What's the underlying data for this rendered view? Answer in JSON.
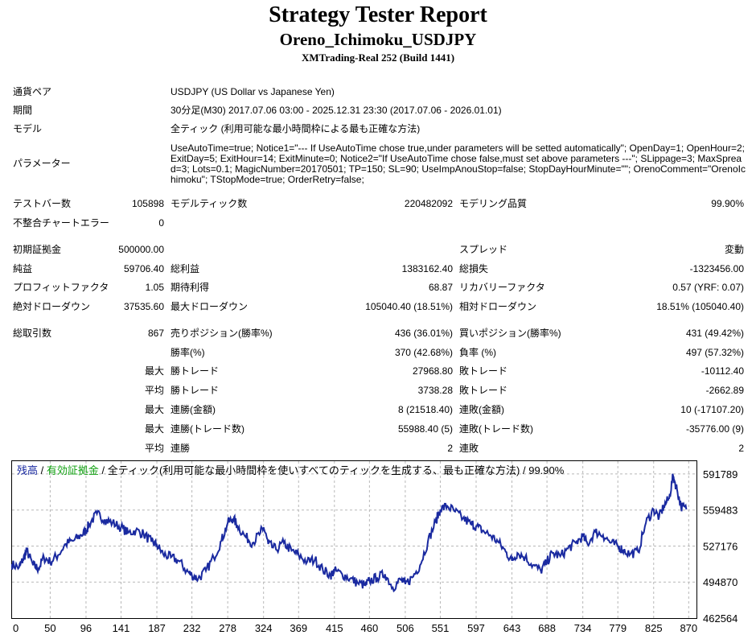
{
  "header": {
    "title": "Strategy Tester Report",
    "subtitle": "Oreno_Ichimoku_USDJPY",
    "server": "XMTrading-Real 252 (Build 1441)"
  },
  "info": {
    "symbol_label": "通貨ペア",
    "symbol_value": "USDJPY (US Dollar vs Japanese Yen)",
    "period_label": "期間",
    "period_value": "30分足(M30) 2017.07.06 03:00 - 2025.12.31 23:30 (2017.07.06 - 2026.01.01)",
    "model_label": "モデル",
    "model_value": "全ティック (利用可能な最小時間枠による最も正確な方法)",
    "params_label": "パラメーター",
    "params_value": "UseAutoTime=true; Notice1=\"--- If UseAutoTime chose true,under parameters will be setted automatically\"; OpenDay=1; OpenHour=2; ExitDay=5; ExitHour=14; ExitMinute=0; Notice2=\"If UseAutoTime chose false,must set above parameters ---\"; SLippage=3; MaxSpread=3; Lots=0.1; MagicNumber=20170501; TP=150; SL=90; UseImpAnouStop=false; StopDayHourMinute=\"\"; OrenoComment=\"OrenoIchimoku\"; TStopMode=true; OrderRetry=false;"
  },
  "stats": {
    "bars_label": "テストバー数",
    "bars_value": "105898",
    "ticks_label": "モデルティック数",
    "ticks_value": "220482092",
    "quality_label": "モデリング品質",
    "quality_value": "99.90%",
    "mismatch_label": "不整合チャートエラー",
    "mismatch_value": "0",
    "deposit_label": "初期証拠金",
    "deposit_value": "500000.00",
    "spread_label": "スプレッド",
    "spread_value": "変動",
    "net_label": "純益",
    "net_value": "59706.40",
    "gross_profit_label": "総利益",
    "gross_profit_value": "1383162.40",
    "gross_loss_label": "総損失",
    "gross_loss_value": "-1323456.00",
    "pf_label": "プロフィットファクタ",
    "pf_value": "1.05",
    "payoff_label": "期待利得",
    "payoff_value": "68.87",
    "recovery_label": "リカバリーファクタ",
    "recovery_value": "0.57 (YRF: 0.07)",
    "abs_dd_label": "絶対ドローダウン",
    "abs_dd_value": "37535.60",
    "max_dd_label": "最大ドローダウン",
    "max_dd_value": "105040.40 (18.51%)",
    "rel_dd_label": "相対ドローダウン",
    "rel_dd_value": "18.51% (105040.40)",
    "total_trades_label": "総取引数",
    "total_trades_value": "867",
    "short_label": "売りポジション(勝率%)",
    "short_value": "436 (36.01%)",
    "long_label": "買いポジション(勝率%)",
    "long_value": "431 (49.42%)",
    "win_rate_label": "勝率(%)",
    "win_rate_value": "370 (42.68%)",
    "loss_rate_label": "負率 (%)",
    "loss_rate_value": "497 (57.32%)",
    "largest_label": "最大",
    "largest_win_label": "勝トレード",
    "largest_win_value": "27968.80",
    "largest_loss_label": "敗トレード",
    "largest_loss_value": "-10112.40",
    "average_label": "平均",
    "avg_win_label": "勝トレード",
    "avg_win_value": "3738.28",
    "avg_loss_label": "敗トレード",
    "avg_loss_value": "-2662.89",
    "max_label1": "最大",
    "consec_wins_money_label": "連勝(金額)",
    "consec_wins_money_value": "8 (21518.40)",
    "consec_losses_money_label": "連敗(金額)",
    "consec_losses_money_value": "10 (-17107.20)",
    "max_label2": "最大",
    "consec_profit_label": "連勝(トレード数)",
    "consec_profit_value": "55988.40 (5)",
    "consec_loss_label": "連敗(トレード数)",
    "consec_loss_value": "-35776.00 (9)",
    "avg_label2": "平均",
    "avg_consec_wins_label": "連勝",
    "avg_consec_wins_value": "2",
    "avg_consec_losses_label": "連敗",
    "avg_consec_losses_value": "2"
  },
  "chart_legend": {
    "balance": "残高",
    "sep1": " / ",
    "equity": "有効証拠金",
    "sep2": " / ",
    "rest": "全ティック(利用可能な最小時間枠を使いすべてのティックを生成する、最も正確な方法) / 99.90%"
  },
  "colors": {
    "balance_line": "#1a2aa0",
    "equity_text": "#10a010",
    "grid": "#b8b8b8"
  },
  "chart_data": {
    "type": "line",
    "xlim": [
      0,
      880
    ],
    "ylim": [
      462564,
      604000
    ],
    "x_ticks": [
      "0",
      "50",
      "96",
      "141",
      "187",
      "232",
      "278",
      "324",
      "369",
      "415",
      "460",
      "506",
      "551",
      "597",
      "643",
      "688",
      "734",
      "779",
      "825",
      "870"
    ],
    "y_ticks": [
      591789,
      559483,
      527176,
      494870,
      462564
    ],
    "series": [
      {
        "color": "#1a2aa0",
        "x": [
          0,
          10,
          15,
          20,
          28,
          35,
          42,
          50,
          60,
          70,
          80,
          90,
          96,
          100,
          110,
          120,
          130,
          141,
          150,
          160,
          170,
          180,
          187,
          195,
          205,
          215,
          225,
          232,
          240,
          250,
          260,
          270,
          278,
          285,
          290,
          300,
          310,
          320,
          324,
          330,
          340,
          350,
          360,
          369,
          380,
          390,
          400,
          410,
          415,
          425,
          435,
          445,
          455,
          460,
          470,
          480,
          490,
          500,
          506,
          515,
          525,
          535,
          545,
          551,
          560,
          570,
          580,
          590,
          597,
          605,
          615,
          625,
          635,
          643,
          650,
          660,
          670,
          680,
          688,
          695,
          705,
          715,
          725,
          734,
          740,
          750,
          760,
          770,
          779,
          785,
          795,
          805,
          815,
          825,
          832,
          838,
          845,
          850,
          855,
          860,
          867
        ],
        "values": [
          511000,
          508000,
          515000,
          523000,
          510000,
          507000,
          517000,
          513000,
          519000,
          529000,
          532000,
          537000,
          541000,
          547000,
          556000,
          551000,
          548000,
          544000,
          539000,
          541000,
          538000,
          531000,
          528000,
          520000,
          517000,
          514000,
          505000,
          501000,
          498000,
          505000,
          517000,
          532000,
          548000,
          552000,
          546000,
          536000,
          530000,
          539000,
          544000,
          529000,
          524000,
          530000,
          523000,
          519000,
          513000,
          515000,
          506000,
          501000,
          505000,
          502000,
          498000,
          494000,
          492000,
          496000,
          499000,
          502000,
          490000,
          497000,
          493000,
          499000,
          510000,
          531000,
          549000,
          560000,
          563000,
          558000,
          552000,
          547000,
          545000,
          541000,
          537000,
          531000,
          522000,
          514000,
          521000,
          517000,
          510000,
          505000,
          513000,
          521000,
          518000,
          525000,
          530000,
          536000,
          529000,
          540000,
          537000,
          530000,
          527000,
          524000,
          520000,
          522000,
          548000,
          560000,
          553000,
          563000,
          570000,
          590000,
          578000,
          563000,
          560000
        ]
      }
    ]
  }
}
